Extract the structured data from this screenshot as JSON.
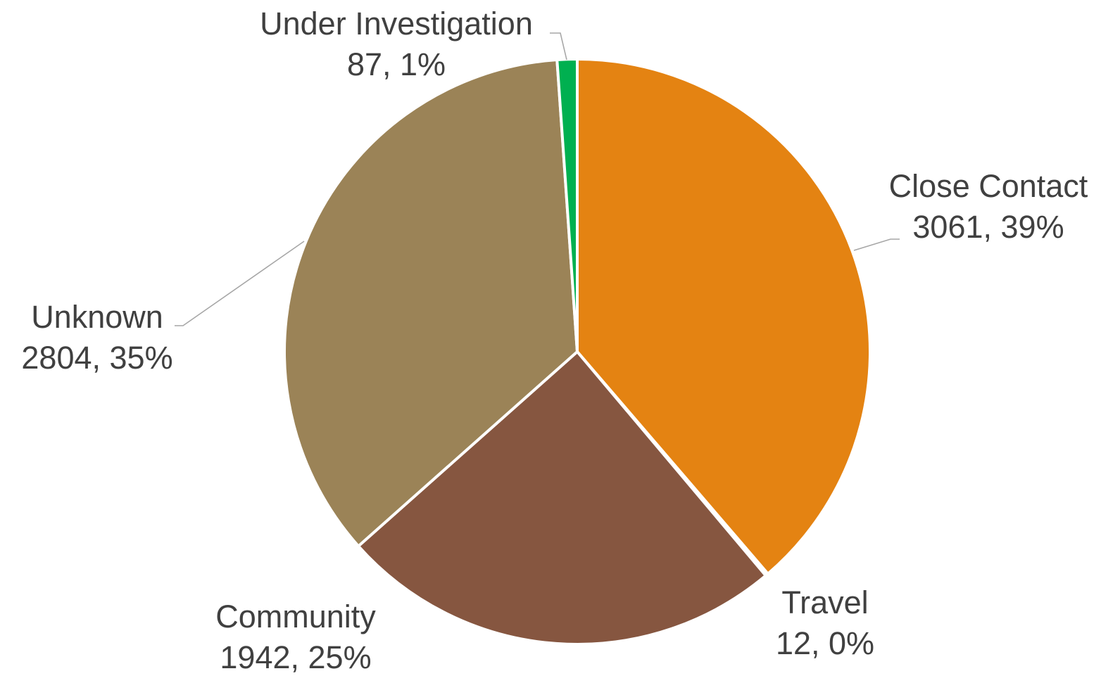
{
  "chart_data": {
    "type": "pie",
    "title": "",
    "start_angle_deg": 0,
    "direction": "clockwise",
    "slices": [
      {
        "label": "Close Contact",
        "value": 3061,
        "percent_label": "39%",
        "color": "#E48312"
      },
      {
        "label": "Travel",
        "value": 12,
        "percent_label": "0%",
        "color": "#BD582C"
      },
      {
        "label": "Community",
        "value": 1942,
        "percent_label": "25%",
        "color": "#865640"
      },
      {
        "label": "Unknown",
        "value": 2804,
        "percent_label": "35%",
        "color": "#9B8357"
      },
      {
        "label": "Under Investigation",
        "value": 87,
        "percent_label": "1%",
        "color": "#00B050"
      }
    ],
    "data_labels": [
      {
        "name": "Close Contact",
        "value_text": "3061, 39%"
      },
      {
        "name": "Travel",
        "value_text": "12, 0%"
      },
      {
        "name": "Community",
        "value_text": "1942, 25%"
      },
      {
        "name": "Unknown",
        "value_text": "2804, 35%"
      },
      {
        "name": "Under Investigation",
        "value_text": "87, 1%"
      }
    ]
  }
}
